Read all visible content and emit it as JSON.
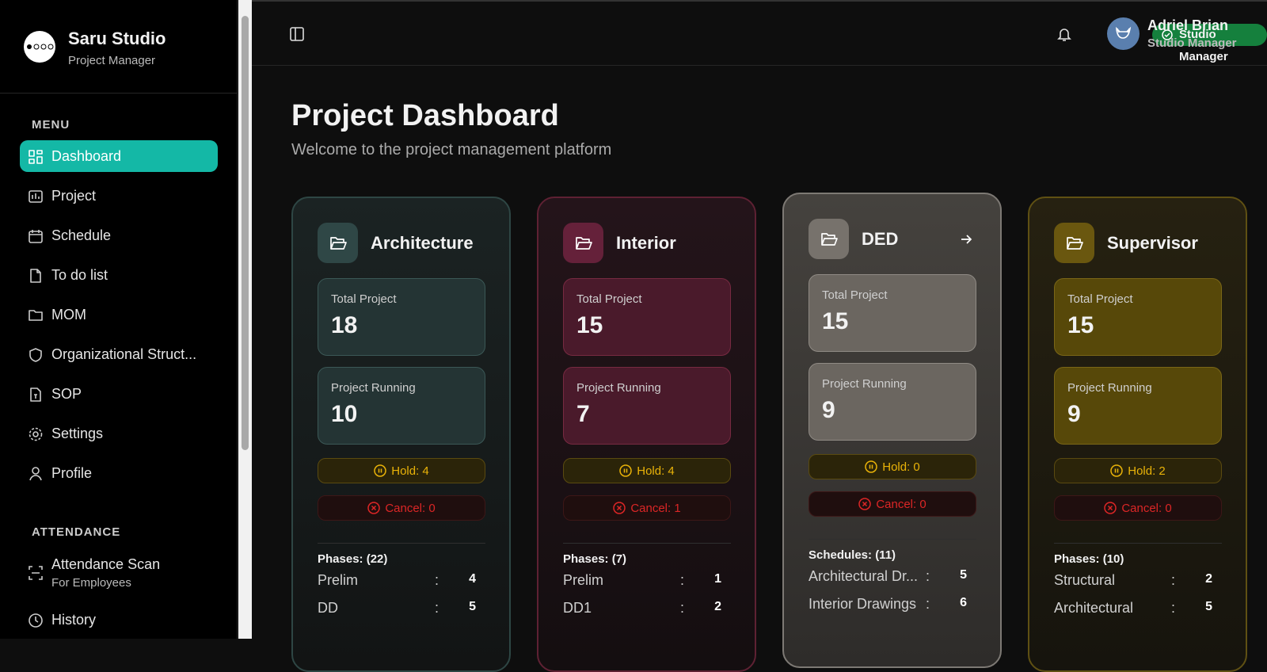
{
  "sidebar": {
    "brand": "Saru Studio",
    "subtitle": "Project Manager",
    "menu_title": "MENU",
    "menu": [
      "Dashboard",
      "Project",
      "Schedule",
      "To do list",
      "MOM",
      "Organizational Struct...",
      "SOP",
      "Settings",
      "Profile"
    ],
    "attendance_title": "ATTENDANCE",
    "attendance": [
      {
        "label": "Attendance Scan",
        "sub": "For Employees"
      },
      {
        "label": "History"
      }
    ]
  },
  "topbar": {
    "role_badge": "Studio Manager",
    "user_name": "Adriel Brian",
    "user_role": "Studio Manager"
  },
  "header": {
    "title": "Project Dashboard",
    "subtitle": "Welcome to the project management platform"
  },
  "detail_separator": ":",
  "cards": [
    {
      "name": "Architecture",
      "total_label": "Total Project",
      "total": 18,
      "running_label": "Project Running",
      "running": 10,
      "hold": "Hold: 4",
      "cancel": "Cancel: 0",
      "list_title": "Phases: (22)",
      "rows": [
        {
          "label": "Prelim",
          "value": 4
        },
        {
          "label": "DD",
          "value": 5
        }
      ]
    },
    {
      "name": "Interior",
      "total_label": "Total Project",
      "total": 15,
      "running_label": "Project Running",
      "running": 7,
      "hold": "Hold: 4",
      "cancel": "Cancel: 1",
      "list_title": "Phases: (7)",
      "rows": [
        {
          "label": "Prelim",
          "value": 1
        },
        {
          "label": "DD1",
          "value": 2
        }
      ]
    },
    {
      "name": "DED",
      "total_label": "Total Project",
      "total": 15,
      "running_label": "Project Running",
      "running": 9,
      "hold": "Hold: 0",
      "cancel": "Cancel: 0",
      "list_title": "Schedules: (11)",
      "rows": [
        {
          "label": "Architectural Dr...",
          "value": 5
        },
        {
          "label": "Interior Drawings",
          "value": 6
        }
      ]
    },
    {
      "name": "Supervisor",
      "total_label": "Total Project",
      "total": 15,
      "running_label": "Project Running",
      "running": 9,
      "hold": "Hold: 2",
      "cancel": "Cancel: 0",
      "list_title": "Phases: (10)",
      "rows": [
        {
          "label": "Structural",
          "value": 2
        },
        {
          "label": "Architectural",
          "value": 5
        }
      ]
    }
  ]
}
